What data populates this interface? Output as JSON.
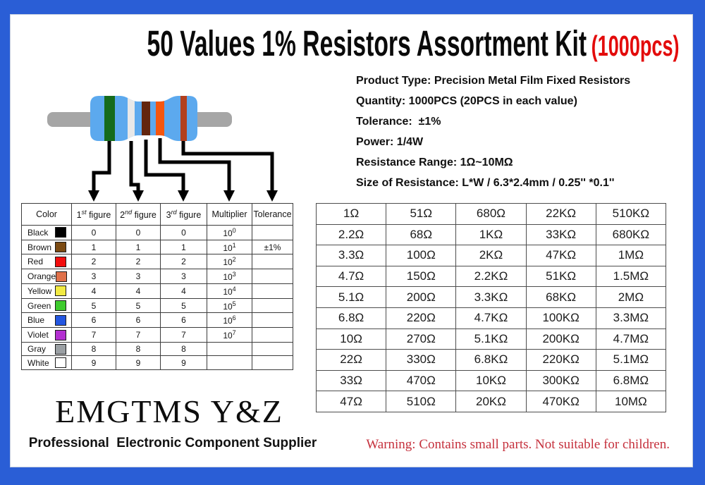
{
  "frame": {
    "border_color": "#2a5ed6",
    "panel_background": "#ffffff"
  },
  "title": {
    "main": "50 Values 1% Resistors Assortment Kit",
    "suffix": "(1000pcs)",
    "main_color": "#0a0a0a",
    "suffix_color": "#e30b0b"
  },
  "specs": {
    "lines": [
      "Product Type: Precision Metal Film Fixed Resistors",
      "Quantity: 1000PCS (20PCS in each value)",
      "Tolerance:  ±1%",
      "Power: 1/4W",
      "Resistance Range: 1Ω~10MΩ",
      "Size of Resistance: L*W / 6.3*2.4mm / 0.25'' *0.1''"
    ]
  },
  "illustration": {
    "body_color": "#5ca9ee",
    "lead_color": "#a6a6a6",
    "arrow_color": "#000000",
    "bands": [
      {
        "label": "1st figure band",
        "color": "#156b1c"
      },
      {
        "label": "2nd figure band",
        "color": "#e8e8e8"
      },
      {
        "label": "3rd figure band",
        "color": "#63250e"
      },
      {
        "label": "multiplier band",
        "color": "#f4560f"
      },
      {
        "label": "tolerance band",
        "color": "#b2401e"
      }
    ]
  },
  "color_table": {
    "headers": [
      {
        "text": "Color"
      },
      {
        "pre": "1",
        "sup": "st",
        "post": " figure"
      },
      {
        "pre": "2",
        "sup": "nd",
        "post": " figure"
      },
      {
        "pre": "3",
        "sup": "rd",
        "post": " figure"
      },
      {
        "text": "Multiplier"
      },
      {
        "text": "Tolerance"
      }
    ],
    "multiplier_base": "10",
    "rows": [
      {
        "name": "Black",
        "swatch": "#000000",
        "f1": "0",
        "f2": "0",
        "f3": "0",
        "exp": "0",
        "tolerance": ""
      },
      {
        "name": "Brown",
        "swatch": "#7b4a12",
        "f1": "1",
        "f2": "1",
        "f3": "1",
        "exp": "1",
        "tolerance": "±1%"
      },
      {
        "name": "Red",
        "swatch": "#f20d0d",
        "f1": "2",
        "f2": "2",
        "f3": "2",
        "exp": "2",
        "tolerance": ""
      },
      {
        "name": "Orange",
        "swatch": "#e0714a",
        "f1": "3",
        "f2": "3",
        "f3": "3",
        "exp": "3",
        "tolerance": ""
      },
      {
        "name": "Yellow",
        "swatch": "#f2ea43",
        "f1": "4",
        "f2": "4",
        "f3": "4",
        "exp": "4",
        "tolerance": ""
      },
      {
        "name": "Green",
        "swatch": "#3ecb2e",
        "f1": "5",
        "f2": "5",
        "f3": "5",
        "exp": "5",
        "tolerance": ""
      },
      {
        "name": "Blue",
        "swatch": "#2356e0",
        "f1": "6",
        "f2": "6",
        "f3": "6",
        "exp": "6",
        "tolerance": ""
      },
      {
        "name": "Violet",
        "swatch": "#b32fd1",
        "f1": "7",
        "f2": "7",
        "f3": "7",
        "exp": "7",
        "tolerance": ""
      },
      {
        "name": "Gray",
        "swatch": "#9a9fa3",
        "f1": "8",
        "f2": "8",
        "f3": "8",
        "exp": "",
        "tolerance": ""
      },
      {
        "name": "White",
        "swatch": "#ffffff",
        "f1": "9",
        "f2": "9",
        "f3": "9",
        "exp": "",
        "tolerance": ""
      }
    ]
  },
  "values_table": {
    "rows": [
      [
        "1Ω",
        "51Ω",
        "680Ω",
        "22KΩ",
        "510KΩ"
      ],
      [
        "2.2Ω",
        "68Ω",
        "1KΩ",
        "33KΩ",
        "680KΩ"
      ],
      [
        "3.3Ω",
        "100Ω",
        "2KΩ",
        "47KΩ",
        "1MΩ"
      ],
      [
        "4.7Ω",
        "150Ω",
        "2.2KΩ",
        "51KΩ",
        "1.5MΩ"
      ],
      [
        "5.1Ω",
        "200Ω",
        "3.3KΩ",
        "68KΩ",
        "2MΩ"
      ],
      [
        "6.8Ω",
        "220Ω",
        "4.7KΩ",
        "100KΩ",
        "3.3MΩ"
      ],
      [
        "10Ω",
        "270Ω",
        "5.1KΩ",
        "200KΩ",
        "4.7MΩ"
      ],
      [
        "22Ω",
        "330Ω",
        "6.8KΩ",
        "220KΩ",
        "5.1MΩ"
      ],
      [
        "33Ω",
        "470Ω",
        "10KΩ",
        "300KΩ",
        "6.8MΩ"
      ],
      [
        "47Ω",
        "510Ω",
        "20KΩ",
        "470KΩ",
        "10MΩ"
      ]
    ]
  },
  "brand": {
    "name": "EMGTMS Y&Z",
    "tagline": "Professional  Electronic Component Supplier"
  },
  "warning": {
    "text": "Warning: Contains small parts. Not suitable for children.",
    "color": "#c5303c"
  }
}
